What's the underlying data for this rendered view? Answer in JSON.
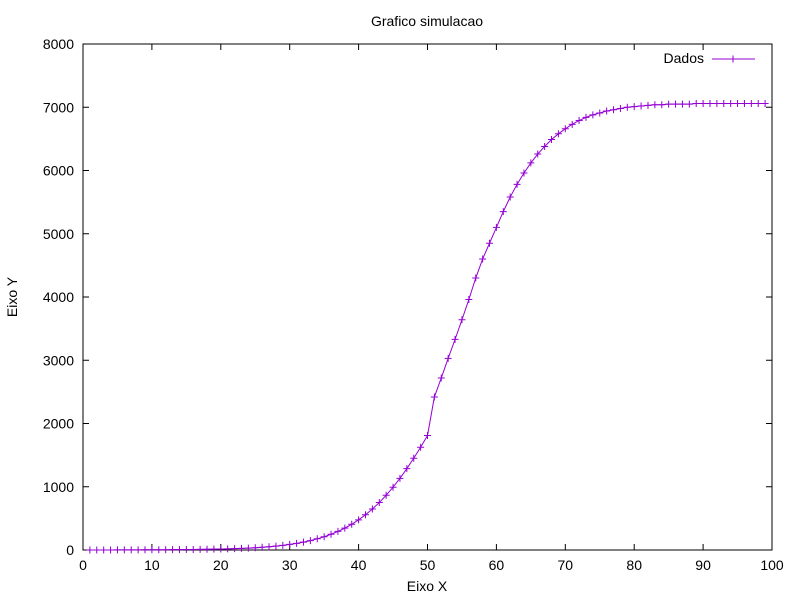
{
  "chart_data": {
    "type": "line",
    "title": "Grafico simulacao",
    "xlabel": "Eixo X",
    "ylabel": "Eixo Y",
    "xlim": [
      0,
      100
    ],
    "ylim": [
      0,
      8000
    ],
    "x_ticks": [
      0,
      10,
      20,
      30,
      40,
      50,
      60,
      70,
      80,
      90,
      100
    ],
    "y_ticks": [
      0,
      1000,
      2000,
      3000,
      4000,
      5000,
      6000,
      7000,
      8000
    ],
    "grid": false,
    "legend_position": "top-right",
    "series": [
      {
        "name": "Dados",
        "color": "#9400d3",
        "marker": "plus",
        "x": [
          1,
          2,
          3,
          4,
          5,
          6,
          7,
          8,
          9,
          10,
          11,
          12,
          13,
          14,
          15,
          16,
          17,
          18,
          19,
          20,
          21,
          22,
          23,
          24,
          25,
          26,
          27,
          28,
          29,
          30,
          31,
          32,
          33,
          34,
          35,
          36,
          37,
          38,
          39,
          40,
          41,
          42,
          43,
          44,
          45,
          46,
          47,
          48,
          49,
          50,
          51,
          52,
          53,
          54,
          55,
          56,
          57,
          58,
          59,
          60,
          61,
          62,
          63,
          64,
          65,
          66,
          67,
          68,
          69,
          70,
          71,
          72,
          73,
          74,
          75,
          76,
          77,
          78,
          79,
          80,
          81,
          82,
          83,
          84,
          85,
          86,
          87,
          88,
          89,
          90,
          91,
          92,
          93,
          94,
          95,
          96,
          97,
          98,
          99
        ],
        "y": [
          1,
          1,
          1,
          1,
          2,
          2,
          2,
          2,
          3,
          3,
          4,
          4,
          5,
          6,
          7,
          8,
          9,
          11,
          13,
          15,
          18,
          21,
          25,
          30,
          36,
          43,
          52,
          62,
          74,
          88,
          105,
          125,
          149,
          177,
          210,
          249,
          294,
          346,
          407,
          477,
          557,
          648,
          750,
          865,
          993,
          1133,
          1286,
          1450,
          1625,
          1810,
          2420,
          2720,
          3030,
          3330,
          3640,
          3960,
          4300,
          4600,
          4850,
          5100,
          5350,
          5580,
          5780,
          5960,
          6120,
          6260,
          6380,
          6490,
          6580,
          6660,
          6730,
          6790,
          6840,
          6880,
          6910,
          6940,
          6960,
          6980,
          7000,
          7010,
          7020,
          7030,
          7040,
          7040,
          7050,
          7050,
          7050,
          7050,
          7060,
          7060,
          7060,
          7060,
          7060,
          7060,
          7060,
          7060,
          7060,
          7060,
          7060
        ]
      }
    ]
  }
}
